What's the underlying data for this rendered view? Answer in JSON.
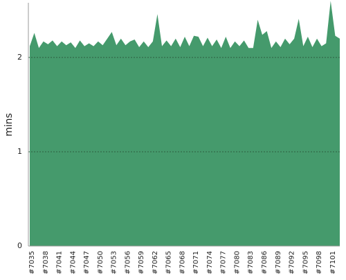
{
  "chart_data": {
    "type": "area",
    "y_label": "mins",
    "color": "#459a6c",
    "grid": true,
    "categories": [
      "#7035",
      null,
      null,
      "#7038",
      null,
      null,
      "#7041",
      null,
      null,
      "#7044",
      null,
      null,
      "#7047",
      null,
      null,
      "#7050",
      null,
      null,
      "#7053",
      null,
      null,
      "#7056",
      null,
      null,
      "#7059",
      null,
      null,
      "#7062",
      null,
      null,
      "#7065",
      null,
      null,
      "#7068",
      null,
      null,
      "#7071",
      null,
      null,
      "#7074",
      null,
      null,
      "#7077",
      null,
      null,
      "#7080",
      null,
      null,
      "#7083",
      null,
      null,
      "#7086",
      null,
      null,
      "#7089",
      null,
      null,
      "#7092",
      null,
      null,
      "#7095",
      null,
      null,
      "#7098",
      null,
      null,
      "#7101",
      null,
      null
    ],
    "values": [
      2.12,
      2.26,
      2.1,
      2.17,
      2.14,
      2.18,
      2.12,
      2.17,
      2.13,
      2.16,
      2.1,
      2.18,
      2.12,
      2.15,
      2.12,
      2.17,
      2.13,
      2.2,
      2.27,
      2.13,
      2.2,
      2.13,
      2.17,
      2.19,
      2.11,
      2.17,
      2.11,
      2.17,
      2.46,
      2.12,
      2.18,
      2.12,
      2.2,
      2.11,
      2.22,
      2.12,
      2.23,
      2.22,
      2.12,
      2.21,
      2.12,
      2.19,
      2.1,
      2.22,
      2.1,
      2.17,
      2.12,
      2.18,
      2.1,
      2.1,
      2.4,
      2.24,
      2.28,
      2.1,
      2.17,
      2.11,
      2.2,
      2.14,
      2.2,
      2.41,
      2.12,
      2.22,
      2.11,
      2.2,
      2.12,
      2.15,
      2.6,
      2.23,
      2.2
    ],
    "ylim": [
      0,
      2.58
    ],
    "yticks": [
      0,
      1,
      2
    ]
  }
}
